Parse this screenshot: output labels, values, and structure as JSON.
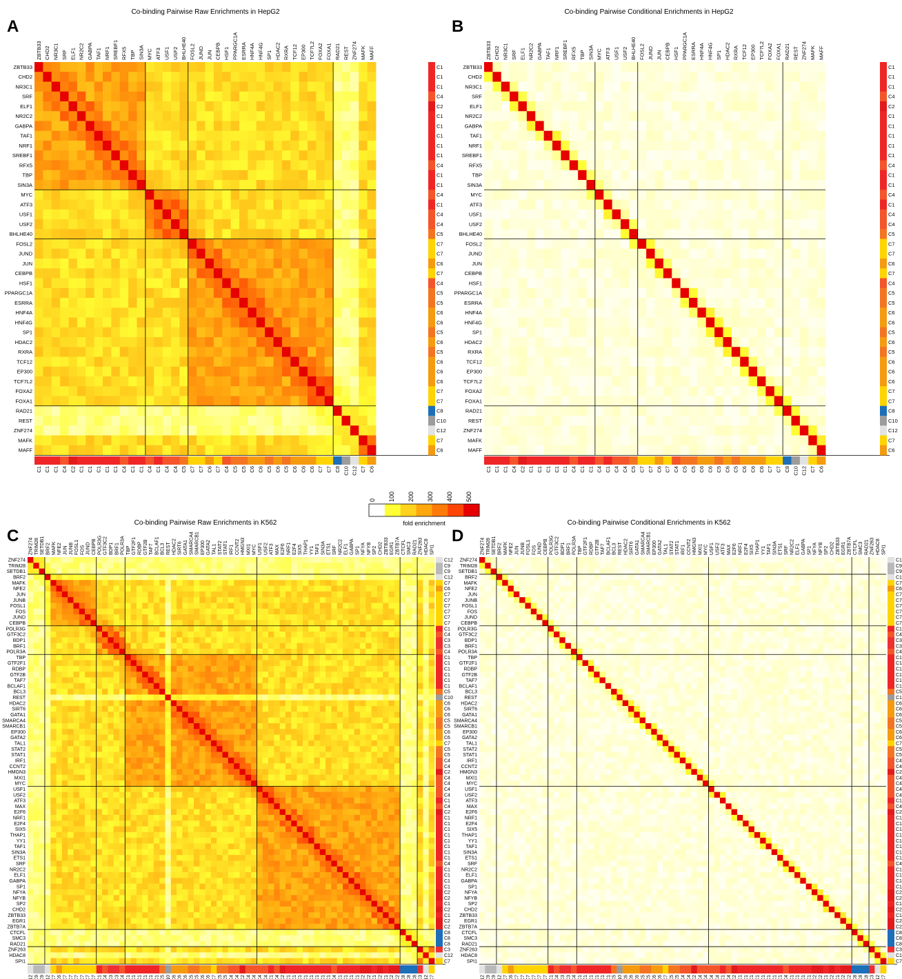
{
  "figure": {
    "panels": [
      {
        "letter": "A",
        "title": "Co-binding Pairwise Raw Enrichments in HepG2"
      },
      {
        "letter": "B",
        "title": "Co-binding Pairwise Conditional Enrichments in HepG2"
      },
      {
        "letter": "C",
        "title": "Co-binding Pairwise Raw Enrichments in K562"
      },
      {
        "letter": "D",
        "title": "Co-binding Pairwise Conditional Enrichments in K562"
      }
    ],
    "legend": {
      "label": "fold enrichment",
      "ticks": [
        "0",
        "100",
        "200",
        "300",
        "400",
        "500"
      ],
      "colors": [
        "#ffffff",
        "#ffff33",
        "#ffd21f",
        "#ffa70f",
        "#ff7a0a",
        "#ff4505",
        "#e60000"
      ]
    },
    "cluster_colors": {
      "C1": "#f02626",
      "C2": "#e31a1c",
      "C3": "#ee3030",
      "C4": "#f4552a",
      "C5": "#f47521",
      "C6": "#f59b0f",
      "C7": "#ffd400",
      "C8": "#1c6fb8",
      "C9": "#b9b9b9",
      "C10": "#9c9c9c",
      "C11": "#cfcfcf",
      "C12": "#e2e2e2"
    }
  },
  "chart_data": [
    {
      "type": "heatmap",
      "title": "Co-binding Pairwise Raw Enrichments in HepG2",
      "cell_type": "HepG2",
      "mode": "raw",
      "value_range": [
        0,
        500
      ],
      "labels": [
        "ZBTB33",
        "CHD2",
        "NR3C1",
        "SRF",
        "ELF1",
        "NR2C2",
        "GABPA",
        "TAF1",
        "NRF1",
        "SREBF1",
        "RFX5",
        "TBP",
        "SIN3A",
        "MYC",
        "ATF3",
        "USF1",
        "USF2",
        "BHLHE40",
        "FOSL2",
        "JUND",
        "JUN",
        "CEBPB",
        "HSF1",
        "PPARGC1A",
        "ESRRA",
        "HNF4A",
        "HNF4G",
        "SP1",
        "HDAC2",
        "RXRA",
        "TCF12",
        "EP300",
        "TCF7L2",
        "FOXA2",
        "FOXA1",
        "RAD21",
        "REST",
        "ZNF274",
        "MAFK",
        "MAFF"
      ],
      "clusters": [
        "C1",
        "C1",
        "C1",
        "C4",
        "C2",
        "C1",
        "C1",
        "C1",
        "C1",
        "C1",
        "C4",
        "C1",
        "C1",
        "C4",
        "C1",
        "C4",
        "C4",
        "C5",
        "C7",
        "C7",
        "C6",
        "C7",
        "C4",
        "C5",
        "C5",
        "C6",
        "C6",
        "C5",
        "C6",
        "C5",
        "C6",
        "C6",
        "C6",
        "C7",
        "C7",
        "C8",
        "C10",
        "C12",
        "C7",
        "C6"
      ],
      "blocks": [
        13,
        18,
        35
      ]
    },
    {
      "type": "heatmap",
      "title": "Co-binding Pairwise Conditional Enrichments in HepG2",
      "cell_type": "HepG2",
      "mode": "conditional",
      "value_range": [
        0,
        500
      ],
      "labels": [
        "ZBTB33",
        "CHD2",
        "NR3C1",
        "SRF",
        "ELF1",
        "NR2C2",
        "GABPA",
        "TAF1",
        "NRF1",
        "SREBF1",
        "RFX5",
        "TBP",
        "SIN3A",
        "MYC",
        "ATF3",
        "USF1",
        "USF2",
        "BHLHE40",
        "FOSL2",
        "JUND",
        "JUN",
        "CEBPB",
        "HSF1",
        "PPARGC1A",
        "ESRRA",
        "HNF4A",
        "HNF4G",
        "SP1",
        "HDAC2",
        "RXRA",
        "TCF12",
        "EP300",
        "TCF7L2",
        "FOXA2",
        "FOXA1",
        "RAD21",
        "REST",
        "ZNF274",
        "MAFK",
        "MAFF"
      ],
      "clusters": [
        "C1",
        "C1",
        "C1",
        "C4",
        "C2",
        "C1",
        "C1",
        "C1",
        "C1",
        "C1",
        "C4",
        "C1",
        "C1",
        "C4",
        "C1",
        "C4",
        "C4",
        "C5",
        "C7",
        "C7",
        "C6",
        "C7",
        "C4",
        "C5",
        "C5",
        "C6",
        "C6",
        "C5",
        "C6",
        "C5",
        "C6",
        "C6",
        "C6",
        "C7",
        "C7",
        "C8",
        "C10",
        "C12",
        "C7",
        "C6"
      ],
      "blocks": [
        13,
        18,
        35
      ]
    },
    {
      "type": "heatmap",
      "title": "Co-binding Pairwise Raw Enrichments in K562",
      "cell_type": "K562",
      "mode": "raw",
      "value_range": [
        0,
        500
      ],
      "labels": [
        "ZNF274",
        "TRIM28",
        "SETDB1",
        "BRF2",
        "MAFK",
        "NFE2",
        "JUN",
        "JUNB",
        "FOSL1",
        "FOS",
        "JUND",
        "CEBPB",
        "POLR3G",
        "GTF3C2",
        "BDP1",
        "BRF1",
        "POLR3A",
        "TBP",
        "GTF2F1",
        "RDBP",
        "GTF2B",
        "TAF7",
        "BCLAF1",
        "BCL3",
        "REST",
        "HDAC2",
        "SIRT6",
        "GATA1",
        "SMARCA4",
        "SMARCB1",
        "EP300",
        "GATA2",
        "TAL1",
        "STAT2",
        "STAT1",
        "IRF1",
        "CCNT2",
        "HMGN3",
        "MXI1",
        "MYC",
        "USF1",
        "USF2",
        "ATF3",
        "MAX",
        "E2F6",
        "NRF1",
        "E2F4",
        "SIX5",
        "THAP1",
        "YY1",
        "TAF1",
        "SIN3A",
        "ETS1",
        "SRF",
        "NR2C2",
        "ELF1",
        "GABPA",
        "SP1",
        "NFYA",
        "NFYB",
        "SP2",
        "CHD2",
        "ZBTB33",
        "EGR1",
        "ZBTB7A",
        "CTCFL",
        "SMC3",
        "RAD21",
        "ZNF263",
        "HDAC8",
        "SPI1"
      ],
      "clusters": [
        "C12",
        "C9",
        "C9",
        "C12",
        "C7",
        "C6",
        "C7",
        "C7",
        "C7",
        "C7",
        "C7",
        "C7",
        "C1",
        "C4",
        "C3",
        "C3",
        "C4",
        "C1",
        "C1",
        "C1",
        "C1",
        "C1",
        "C1",
        "C5",
        "C10",
        "C6",
        "C6",
        "C6",
        "C5",
        "C5",
        "C6",
        "C6",
        "C7",
        "C5",
        "C5",
        "C4",
        "C4",
        "C2",
        "C4",
        "C4",
        "C4",
        "C4",
        "C1",
        "C4",
        "C2",
        "C1",
        "C1",
        "C1",
        "C1",
        "C1",
        "C1",
        "C1",
        "C1",
        "C4",
        "C1",
        "C1",
        "C1",
        "C1",
        "C2",
        "C2",
        "C1",
        "C2",
        "C1",
        "C2",
        "C2",
        "C8",
        "C8",
        "C8",
        "C3",
        "C12",
        "C7"
      ],
      "blocks": [
        3,
        12,
        17,
        40,
        65,
        68
      ]
    },
    {
      "type": "heatmap",
      "title": "Co-binding Pairwise Conditional Enrichments in K562",
      "cell_type": "K562",
      "mode": "conditional",
      "value_range": [
        0,
        500
      ],
      "labels": [
        "ZNF274",
        "TRIM28",
        "SETDB1",
        "BRF2",
        "MAFK",
        "NFE2",
        "JUN",
        "JUNB",
        "FOSL1",
        "FOS",
        "JUND",
        "CEBPB",
        "POLR3G",
        "GTF3C2",
        "BDP1",
        "BRF1",
        "POLR3A",
        "TBP",
        "GTF2F1",
        "RDBP",
        "GTF2B",
        "TAF7",
        "BCLAF1",
        "BCL3",
        "REST",
        "HDAC2",
        "SIRT6",
        "GATA1",
        "SMARCA4",
        "SMARCB1",
        "EP300",
        "GATA2",
        "TAL1",
        "STAT2",
        "STAT1",
        "IRF1",
        "CCNT2",
        "HMGN3",
        "MXI1",
        "MYC",
        "USF1",
        "USF2",
        "ATF3",
        "MAX",
        "E2F6",
        "NRF1",
        "E2F4",
        "SIX5",
        "THAP1",
        "YY1",
        "TAF1",
        "SIN3A",
        "ETS1",
        "SRF",
        "NR2C2",
        "ELF1",
        "GABPA",
        "SP1",
        "NFYA",
        "NFYB",
        "SP2",
        "CHD2",
        "ZBTB33",
        "EGR1",
        "ZBTB7A",
        "CTCFL",
        "SMC3",
        "RAD21",
        "ZNF263",
        "HDAC8",
        "SPI1"
      ],
      "clusters": [
        "C12",
        "C9",
        "C9",
        "C12",
        "C7",
        "C6",
        "C7",
        "C7",
        "C7",
        "C7",
        "C7",
        "C7",
        "C1",
        "C4",
        "C3",
        "C3",
        "C4",
        "C1",
        "C1",
        "C1",
        "C1",
        "C1",
        "C1",
        "C5",
        "C10",
        "C6",
        "C6",
        "C6",
        "C5",
        "C5",
        "C6",
        "C6",
        "C7",
        "C5",
        "C5",
        "C4",
        "C4",
        "C2",
        "C4",
        "C4",
        "C4",
        "C4",
        "C1",
        "C4",
        "C2",
        "C1",
        "C1",
        "C1",
        "C1",
        "C1",
        "C1",
        "C1",
        "C1",
        "C4",
        "C1",
        "C1",
        "C1",
        "C1",
        "C2",
        "C2",
        "C1",
        "C2",
        "C1",
        "C2",
        "C2",
        "C8",
        "C8",
        "C8",
        "C3",
        "C12",
        "C7"
      ],
      "blocks": [
        3,
        12,
        17,
        40,
        65,
        68
      ]
    }
  ]
}
